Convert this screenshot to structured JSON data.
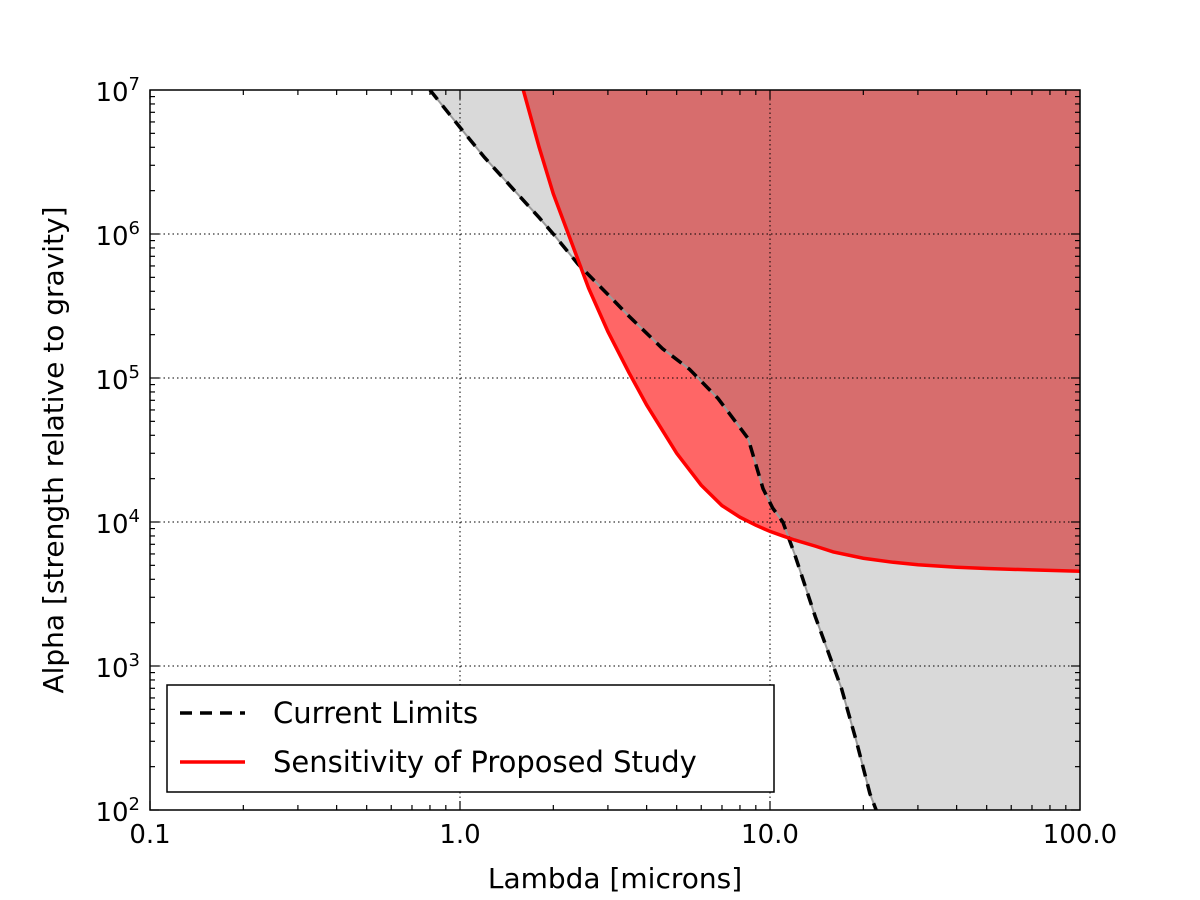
{
  "chart_data": {
    "type": "line",
    "xlabel": "Lambda [microns]",
    "ylabel": "Alpha [strength relative to gravity]",
    "xscale": "log",
    "yscale": "log",
    "xlim": [
      0.1,
      100.0
    ],
    "ylim": [
      100,
      10000000
    ],
    "x_ticks": [
      {
        "value": 0.1,
        "label": "0.1"
      },
      {
        "value": 1.0,
        "label": "1.0"
      },
      {
        "value": 10.0,
        "label": "10.0"
      },
      {
        "value": 100.0,
        "label": "100.0"
      }
    ],
    "y_ticks": [
      {
        "value": 100,
        "base": "10",
        "exp": "2"
      },
      {
        "value": 1000,
        "base": "10",
        "exp": "3"
      },
      {
        "value": 10000,
        "base": "10",
        "exp": "4"
      },
      {
        "value": 100000,
        "base": "10",
        "exp": "5"
      },
      {
        "value": 1000000,
        "base": "10",
        "exp": "6"
      },
      {
        "value": 10000000,
        "base": "10",
        "exp": "7"
      }
    ],
    "grid": true,
    "legend_position": "lower-left",
    "series": [
      {
        "name": "Current Limits",
        "style": "dashed",
        "color": "#000000",
        "fill_color": "#d9d9d9",
        "x": [
          0.8,
          1.0,
          1.2,
          1.5,
          1.8,
          2.0,
          2.4,
          3.0,
          3.5,
          4.5,
          5.5,
          6.8,
          8.5,
          9.5,
          10.2,
          11.0,
          12.0,
          14.0,
          17.0,
          19.0,
          21.0,
          22.0
        ],
        "y": [
          10000000,
          5500000,
          3400000,
          2000000,
          1300000,
          1000000,
          620000,
          380000,
          270000,
          160000,
          115000,
          72000,
          38000,
          17000,
          12500,
          10000,
          6000,
          2200,
          700,
          300,
          130,
          100
        ]
      },
      {
        "name": "Sensitivity of Proposed Study",
        "style": "solid",
        "color": "#ff0000",
        "fill_color": "#d76d6d",
        "x": [
          1.6,
          1.8,
          2.0,
          2.3,
          2.6,
          3.0,
          3.5,
          4.0,
          5.0,
          6.0,
          7.0,
          8.0,
          9.0,
          10.0,
          11.0,
          12.0,
          14.0,
          16.0,
          20.0,
          25.0,
          30.0,
          40.0,
          50.0,
          70.0,
          100.0
        ],
        "y": [
          10000000,
          4000000,
          1900000,
          850000,
          420000,
          210000,
          110000,
          65000,
          30000,
          18000,
          13000,
          10800,
          9500,
          8600,
          8000,
          7500,
          6800,
          6200,
          5600,
          5250,
          5050,
          4850,
          4750,
          4650,
          4550
        ]
      }
    ],
    "overlap_fill_color": "#ff6666"
  }
}
